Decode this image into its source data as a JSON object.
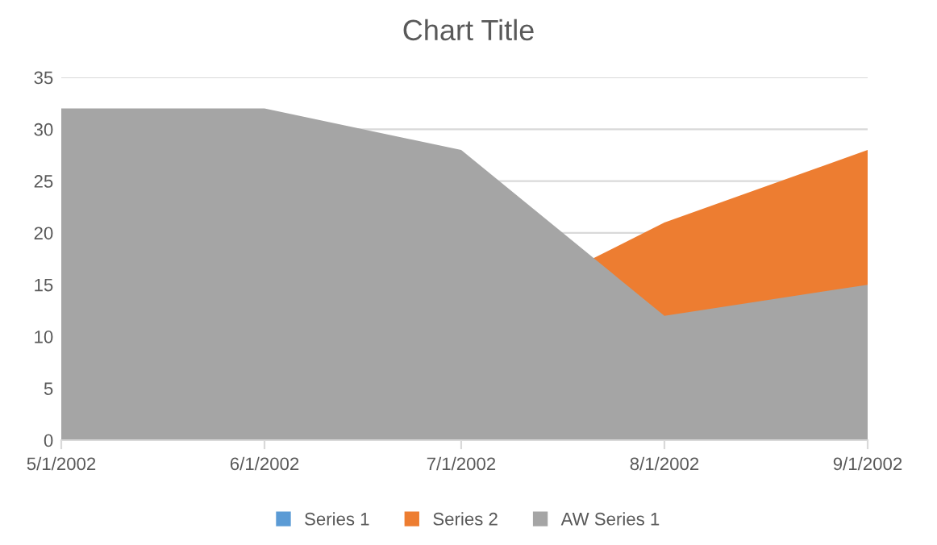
{
  "chart_data": {
    "type": "area",
    "title": "Chart Title",
    "x": [
      "2002-05-01",
      "2002-06-01",
      "2002-07-01",
      "2002-08-01",
      "2002-09-01"
    ],
    "series": [
      {
        "name": "Series 1",
        "color": "#5b9bd5",
        "values": [
          null,
          null,
          null,
          null,
          null
        ]
      },
      {
        "name": "Series 2",
        "color": "#ed7d31",
        "x": [
          "2002-07-21",
          "2002-08-01",
          "2002-09-01"
        ],
        "values": [
          17.5,
          21,
          28
        ]
      },
      {
        "name": "AW Series 1",
        "color": "#a5a5a5",
        "values": [
          32,
          32,
          28,
          12,
          15
        ]
      }
    ],
    "xlim": [
      "2002-05-01",
      "2002-09-01"
    ],
    "xticks": [
      {
        "value": "2002-05-01",
        "label": "5/1/2002"
      },
      {
        "value": "2002-06-01",
        "label": "6/1/2002"
      },
      {
        "value": "2002-07-01",
        "label": "7/1/2002"
      },
      {
        "value": "2002-08-01",
        "label": "8/1/2002"
      },
      {
        "value": "2002-09-01",
        "label": "9/1/2002"
      }
    ],
    "ylim": [
      0,
      35
    ],
    "yticks": [
      0,
      5,
      10,
      15,
      20,
      25,
      30,
      35
    ],
    "grid": "y",
    "legend": "bottom"
  }
}
